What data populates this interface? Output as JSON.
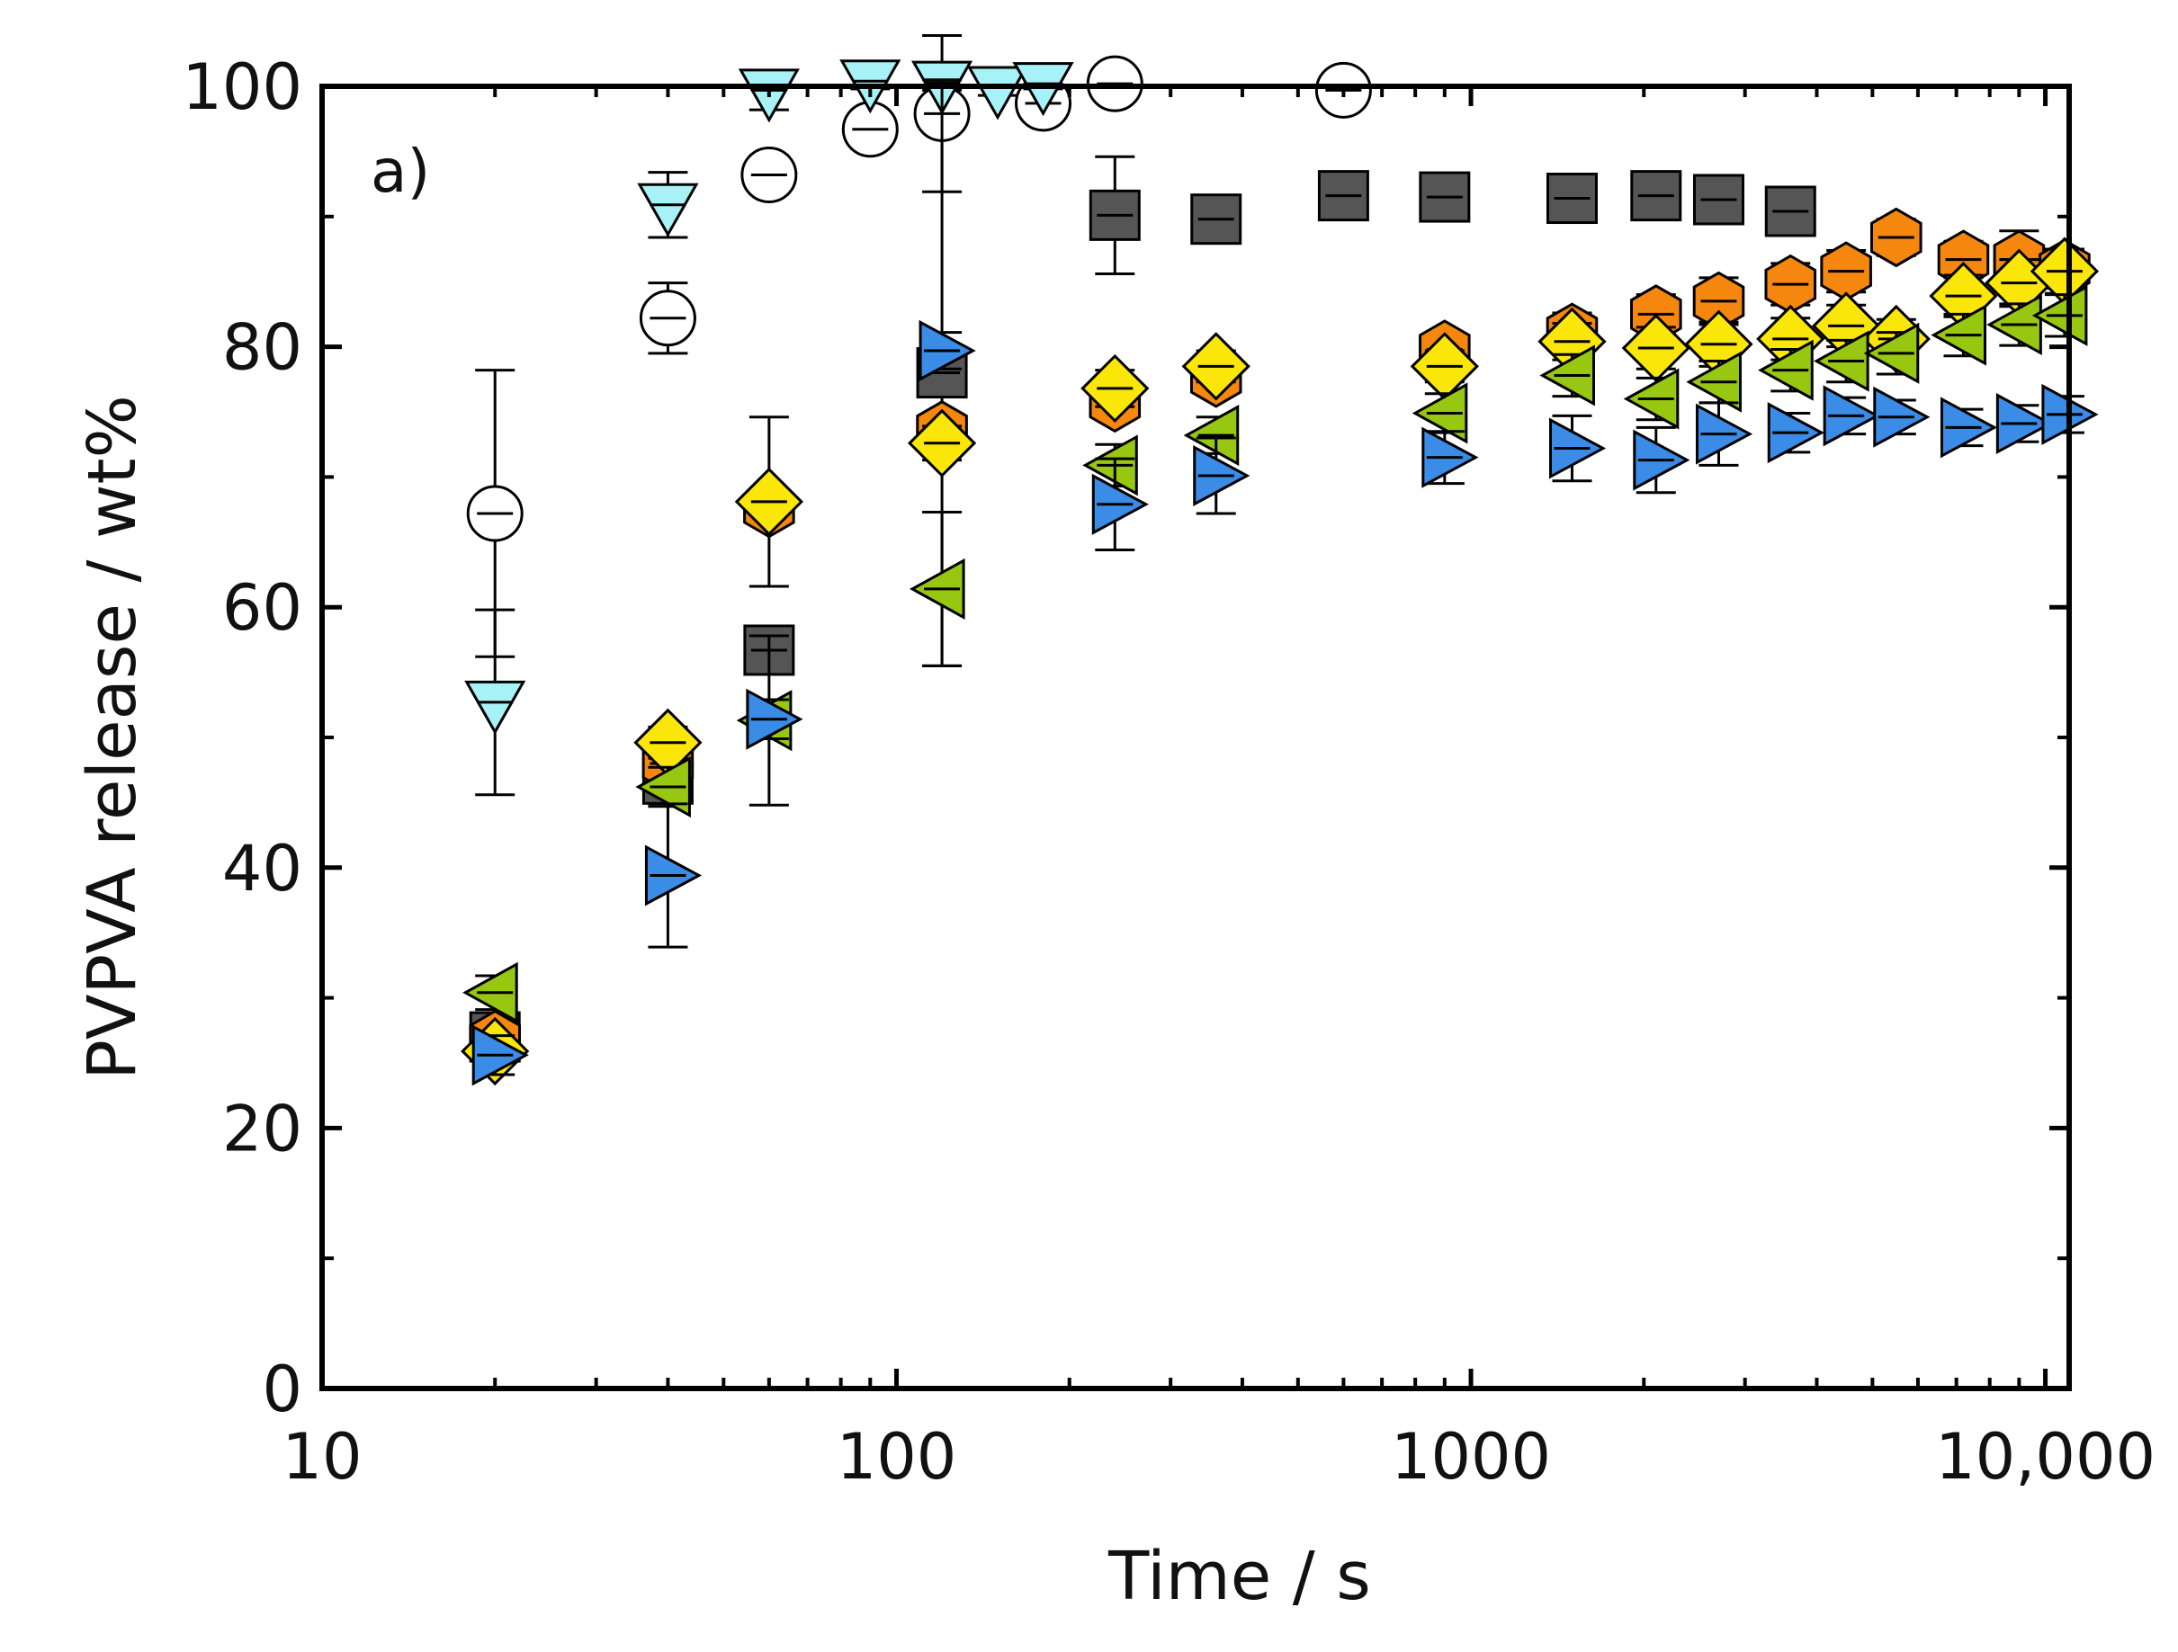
{
  "chart_data": {
    "type": "scatter",
    "panel_label": "a)",
    "xlabel": "Time / s",
    "ylabel": "PVPVA release / wt%",
    "xscale": "log",
    "xlim": [
      10,
      11000
    ],
    "ylim": [
      0,
      100
    ],
    "x_ticks": [
      {
        "value": 10,
        "label": "10"
      },
      {
        "value": 100,
        "label": "100"
      },
      {
        "value": 1000,
        "label": "1000"
      },
      {
        "value": 10000,
        "label": "10,000"
      }
    ],
    "y_ticks": [
      {
        "value": 0,
        "label": "0"
      },
      {
        "value": 20,
        "label": "20"
      },
      {
        "value": 40,
        "label": "40"
      },
      {
        "value": 60,
        "label": "60"
      },
      {
        "value": 80,
        "label": "80"
      },
      {
        "value": 100,
        "label": "100"
      }
    ],
    "y_minor_ticks": [
      10,
      30,
      50,
      70,
      90
    ],
    "grid": false,
    "series": [
      {
        "name": "series-circle",
        "marker": "circle",
        "color": "#ffffff",
        "x": [
          20,
          40,
          60,
          90,
          120,
          180,
          240,
          600
        ],
        "y": [
          67.2,
          82.2,
          93.2,
          96.7,
          97.9,
          98.7,
          100.2,
          99.7
        ],
        "err": [
          11,
          2.7,
          1.5,
          1.5,
          6,
          1,
          1.4,
          1.2
        ]
      },
      {
        "name": "series-triangle-down",
        "marker": "triangle-down",
        "color": "#a6f2f7",
        "x": [
          20,
          40,
          60,
          90,
          120,
          150,
          180
        ],
        "y": [
          52.7,
          90.9,
          99.7,
          100.4,
          100.3,
          99.9,
          100.2
        ],
        "err": [
          7.1,
          2.5,
          1.5,
          0.6,
          0.6,
          0.6,
          0.4
        ]
      },
      {
        "name": "series-square",
        "marker": "square",
        "color": "#555555",
        "x": [
          20,
          40,
          60,
          120,
          240,
          360,
          600,
          900,
          1500,
          2100,
          2700,
          3600
        ],
        "y": [
          27,
          46.8,
          56.7,
          78,
          90.1,
          89.8,
          91.6,
          91.5,
          91.4,
          91.6,
          91.3,
          90.4
        ],
        "err": [
          1.5,
          1.5,
          1.5,
          22.5,
          4.5,
          1.2,
          1,
          1,
          1,
          1,
          1,
          1.2
        ]
      },
      {
        "name": "series-hexagon",
        "marker": "hexagon",
        "color": "#f5870f",
        "x": [
          20,
          40,
          60,
          120,
          240,
          360,
          900,
          1500,
          2100,
          2700,
          3600,
          4500,
          5500,
          7200,
          9000,
          10800
        ],
        "y": [
          26.8,
          48,
          67.6,
          73.6,
          75.7,
          77.6,
          79.8,
          81.1,
          82.5,
          83.5,
          84.8,
          85.8,
          88.4,
          86.7,
          86.7,
          86
        ],
        "err": [
          1,
          1.3,
          1.3,
          1.3,
          1.2,
          1.2,
          1.2,
          1.5,
          1.5,
          1.8,
          1.6,
          1.6,
          1.4,
          1.4,
          2.2,
          1.5
        ]
      },
      {
        "name": "series-diamond",
        "marker": "diamond",
        "color": "#fbe60a",
        "x": [
          20,
          40,
          60,
          120,
          240,
          360,
          900,
          1500,
          2100,
          2700,
          3600,
          4500,
          5500,
          7200,
          9000,
          10800
        ],
        "y": [
          25.9,
          49.6,
          68.1,
          72.6,
          76.8,
          78.5,
          78.5,
          80.4,
          79.9,
          80.2,
          80.6,
          81.6,
          80.6,
          83.9,
          84.9,
          85.8
        ],
        "err": [
          1,
          1.2,
          6.5,
          1.3,
          1.4,
          1.2,
          1.2,
          1.4,
          1.6,
          1.7,
          1.6,
          1.6,
          1.5,
          1.6,
          1.8,
          1.7
        ]
      },
      {
        "name": "series-triangle-left",
        "marker": "triangle-left",
        "color": "#98c712",
        "x": [
          20,
          40,
          60,
          120,
          240,
          360,
          900,
          1500,
          2100,
          2700,
          3600,
          4500,
          5500,
          7200,
          9000,
          10800
        ],
        "y": [
          30.4,
          46.2,
          51.3,
          61.4,
          70.9,
          73.2,
          74.9,
          77.8,
          76,
          77.3,
          78.2,
          78.9,
          79.5,
          80.9,
          81.7,
          82.4
        ],
        "err": [
          1.3,
          1.5,
          6.5,
          5.9,
          1.6,
          1.4,
          1.5,
          1.6,
          1.6,
          1.6,
          1.6,
          1.6,
          1.6,
          1.6,
          1.6,
          1.6
        ]
      },
      {
        "name": "series-triangle-right",
        "marker": "triangle-right",
        "color": "#3b8ce6",
        "x": [
          20,
          40,
          60,
          120,
          240,
          360,
          900,
          1500,
          2100,
          2700,
          3600,
          4500,
          5500,
          7200,
          9000,
          10800
        ],
        "y": [
          25.6,
          39.4,
          51.4,
          79.7,
          67.9,
          70.1,
          71.5,
          72.2,
          71.3,
          73.3,
          73.4,
          74.7,
          74.6,
          73.8,
          74.1,
          74.8
        ],
        "err": [
          1.5,
          5.5,
          1.5,
          1.4,
          3.5,
          2.9,
          2,
          2.5,
          2.5,
          2.4,
          1.5,
          1.4,
          1.3,
          1.4,
          1.4,
          1.4
        ]
      }
    ]
  }
}
